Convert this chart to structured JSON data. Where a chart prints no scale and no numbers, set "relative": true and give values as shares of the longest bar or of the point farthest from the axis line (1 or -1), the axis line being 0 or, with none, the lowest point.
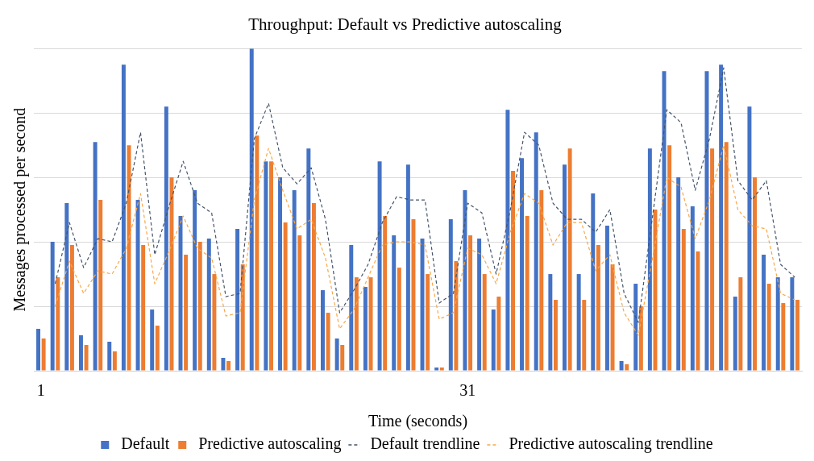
{
  "chart_data": {
    "type": "bar",
    "title": "Throughput: Default vs Predictive autoscaling",
    "xlabel": "Time (seconds)",
    "ylabel": "Messages processed per second",
    "relative": true,
    "grid": "y",
    "legend": "bottom",
    "categories": [
      "1",
      null,
      null,
      null,
      null,
      null,
      null,
      null,
      null,
      null,
      null,
      null,
      null,
      null,
      null,
      null,
      null,
      null,
      null,
      null,
      null,
      null,
      null,
      null,
      null,
      null,
      null,
      null,
      null,
      null,
      "31",
      null,
      null,
      null,
      null,
      null,
      null,
      null,
      null,
      null,
      null,
      null,
      null,
      null,
      null,
      null,
      null,
      null,
      null,
      null,
      null,
      null,
      null,
      null
    ],
    "series": [
      {
        "name": "Default",
        "color": "#4472c4",
        "values": [
          0.13,
          0.4,
          0.52,
          0.11,
          0.71,
          0.09,
          0.95,
          0.53,
          0.19,
          0.82,
          0.48,
          0.56,
          0.41,
          0.04,
          0.44,
          1,
          0.65,
          0.6,
          0.56,
          0.69,
          0.25,
          0.1,
          0.39,
          0.26,
          0.65,
          0.42,
          0.64,
          0.41,
          0.01,
          0.47,
          0.56,
          0.41,
          0.19,
          0.81,
          0.66,
          0.74,
          0.3,
          0.64,
          0.3,
          0.55,
          0.45,
          0.03,
          0.27,
          0.69,
          0.93,
          0.6,
          0.51,
          0.93,
          0.95,
          0.23,
          0.82,
          0.36,
          0.29,
          0.29
        ]
      },
      {
        "name": "Predictive autoscaling",
        "color": "#ed7d31",
        "values": [
          0.1,
          0.29,
          0.39,
          0.08,
          0.53,
          0.06,
          0.7,
          0.39,
          0.14,
          0.6,
          0.36,
          0.4,
          0.3,
          0.03,
          0.33,
          0.73,
          0.65,
          0.46,
          0.42,
          0.52,
          0.18,
          0.08,
          0.29,
          0.29,
          0.48,
          0.32,
          0.47,
          0.3,
          0.01,
          0.34,
          0.42,
          0.3,
          0.23,
          0.62,
          0.48,
          0.56,
          0.22,
          0.69,
          0.22,
          0.39,
          0.33,
          0.02,
          0.2,
          0.5,
          0.7,
          0.44,
          0.37,
          0.69,
          0.71,
          0.29,
          0.6,
          0.27,
          0.21,
          0.22
        ]
      },
      {
        "name": "Default trendline",
        "type": "line",
        "line_style": "dashed",
        "marker": "none",
        "color": "#44546a",
        "values": [
          null,
          0.27,
          0.46,
          0.32,
          0.41,
          0.4,
          0.52,
          0.74,
          0.36,
          0.51,
          0.65,
          0.52,
          0.49,
          0.23,
          0.24,
          0.72,
          0.83,
          0.63,
          0.58,
          0.63,
          0.47,
          0.18,
          0.25,
          0.33,
          0.46,
          0.54,
          0.53,
          0.53,
          0.21,
          0.24,
          0.52,
          0.49,
          0.3,
          0.5,
          0.74,
          0.7,
          0.52,
          0.47,
          0.47,
          0.43,
          0.5,
          0.24,
          0.15,
          0.48,
          0.81,
          0.77,
          0.56,
          0.72,
          0.94,
          0.59,
          0.53,
          0.59,
          0.33,
          0.29
        ]
      },
      {
        "name": "Predictive autoscaling trendline",
        "type": "line",
        "line_style": "dashed",
        "marker": "none",
        "color": "#f8a848",
        "values": [
          null,
          0.2,
          0.34,
          0.24,
          0.31,
          0.3,
          0.38,
          0.55,
          0.27,
          0.37,
          0.48,
          0.38,
          0.35,
          0.17,
          0.18,
          0.53,
          0.69,
          0.56,
          0.44,
          0.47,
          0.35,
          0.13,
          0.19,
          0.29,
          0.39,
          0.4,
          0.4,
          0.39,
          0.16,
          0.18,
          0.38,
          0.36,
          0.27,
          0.43,
          0.55,
          0.52,
          0.39,
          0.46,
          0.46,
          0.31,
          0.36,
          0.18,
          0.11,
          0.35,
          0.6,
          0.57,
          0.41,
          0.53,
          0.7,
          0.5,
          0.45,
          0.44,
          0.24,
          0.22
        ]
      }
    ]
  }
}
